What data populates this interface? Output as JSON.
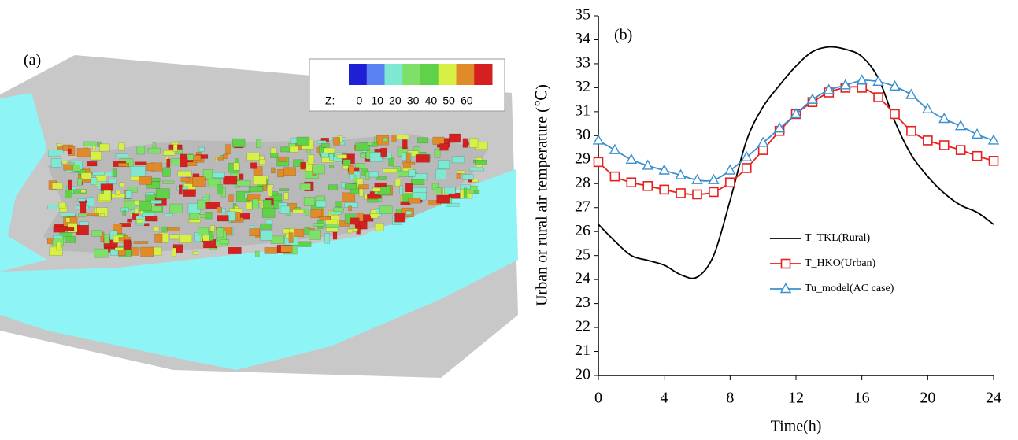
{
  "panel_a": {
    "label": "(a)",
    "colorbar": {
      "title": "Z:",
      "ticks": [
        0,
        10,
        20,
        30,
        40,
        50,
        60
      ],
      "colors": [
        "#1f1fd6",
        "#5a82f0",
        "#7fe8d2",
        "#7ee068",
        "#5fd24a",
        "#d6f046",
        "#e08a2a",
        "#d42020"
      ]
    }
  },
  "chart_data": {
    "type": "line",
    "label": "(b)",
    "x_label": "Time(h)",
    "y_label": "Urban or rural air temperature  (℃)",
    "x": [
      0,
      1,
      2,
      3,
      4,
      5,
      6,
      7,
      8,
      9,
      10,
      11,
      12,
      13,
      14,
      15,
      16,
      17,
      18,
      19,
      20,
      21,
      22,
      23,
      24
    ],
    "xlim": [
      0,
      24
    ],
    "xticks": [
      0,
      4,
      8,
      12,
      16,
      20,
      24
    ],
    "ylim": [
      20,
      35
    ],
    "yticks": [
      20,
      21,
      22,
      23,
      24,
      25,
      26,
      27,
      28,
      29,
      30,
      31,
      32,
      33,
      34,
      35
    ],
    "legend": "center",
    "series": [
      {
        "name": "T_TKL(Rural)",
        "color": "#000000",
        "marker": null,
        "values": [
          26.3,
          25.6,
          25.0,
          24.8,
          24.6,
          24.2,
          24.1,
          25.0,
          27.3,
          29.8,
          31.2,
          32.1,
          32.9,
          33.5,
          33.7,
          33.6,
          33.3,
          32.4,
          30.6,
          29.2,
          28.3,
          27.6,
          27.1,
          26.8,
          26.3
        ]
      },
      {
        "name": "T_HKO(Urban)",
        "color": "#e8201c",
        "marker": "square",
        "values": [
          28.9,
          28.3,
          28.05,
          27.9,
          27.75,
          27.6,
          27.55,
          27.65,
          28.05,
          28.65,
          29.4,
          30.2,
          30.9,
          31.4,
          31.8,
          32.0,
          32.0,
          31.6,
          30.9,
          30.2,
          29.8,
          29.6,
          29.4,
          29.15,
          28.95
        ]
      },
      {
        "name": "Tu_model(AC case)",
        "color": "#3a8fd0",
        "marker": "triangle",
        "values": [
          29.8,
          29.4,
          29.0,
          28.75,
          28.55,
          28.35,
          28.15,
          28.15,
          28.55,
          29.1,
          29.7,
          30.3,
          30.9,
          31.5,
          31.9,
          32.1,
          32.3,
          32.25,
          32.05,
          31.7,
          31.1,
          30.7,
          30.4,
          30.05,
          29.8
        ]
      }
    ]
  }
}
